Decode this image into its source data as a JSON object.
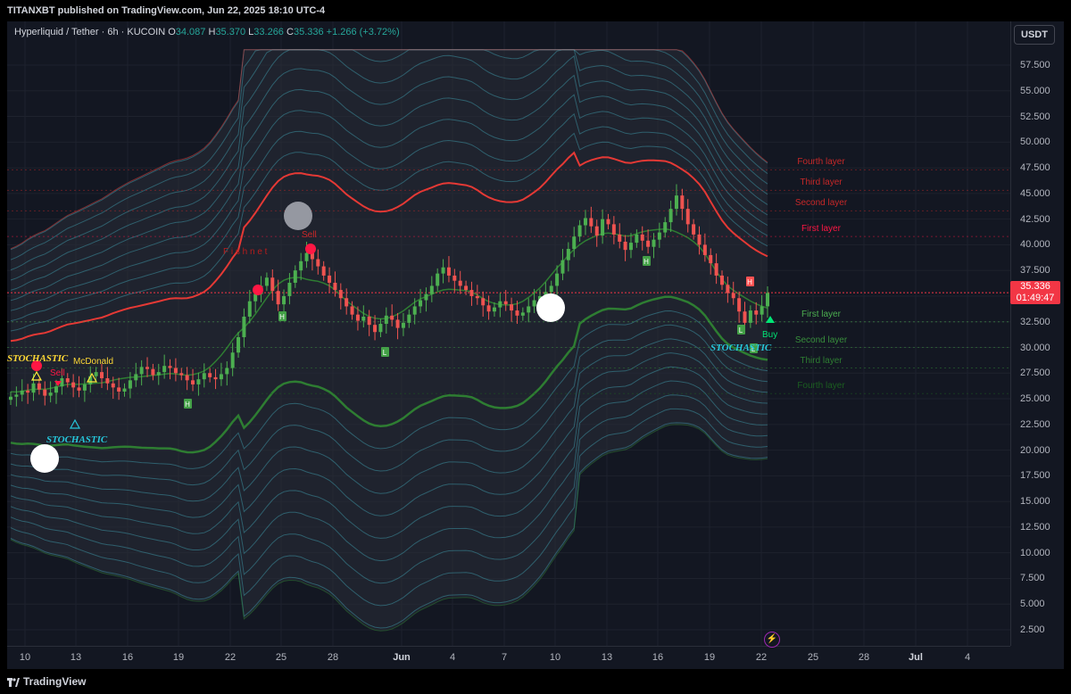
{
  "header": {
    "published": "TITANXBT published on TradingView.com, Jun 22, 2025 18:10 UTC-4"
  },
  "legend": {
    "symbol": "Hyperliquid / Tether · 6h · KUCOIN",
    "o_label": "O",
    "o_value": "34.087",
    "h_label": "H",
    "h_value": "35.370",
    "l_label": "L",
    "l_value": "33.266",
    "c_label": "C",
    "c_value": "35.336",
    "change": "+1.266 (+3.72%)"
  },
  "currency": "USDT",
  "price_axis": {
    "ticks": [
      "57.500",
      "55.000",
      "52.500",
      "50.000",
      "47.500",
      "45.000",
      "42.500",
      "40.000",
      "37.500",
      "35.000",
      "32.500",
      "30.000",
      "27.500",
      "25.000",
      "22.500",
      "20.000",
      "17.500",
      "15.000",
      "12.500",
      "10.000",
      "7.500",
      "5.000",
      "2.500"
    ]
  },
  "price_tag": {
    "price": "35.336",
    "countdown": "01:49:47"
  },
  "time_axis": {
    "ticks": [
      "10",
      "13",
      "16",
      "19",
      "22",
      "25",
      "28",
      "Jun",
      "4",
      "7",
      "10",
      "13",
      "16",
      "19",
      "22",
      "25",
      "28",
      "Jul",
      "4"
    ]
  },
  "layers": {
    "upper": [
      "Fourth layer",
      "Third layer",
      "Second layer",
      "First layer"
    ],
    "lower": [
      "First layer",
      "Second layer",
      "Third layer",
      "Fourth layer"
    ]
  },
  "signals": {
    "sell": "Sell",
    "buy": "Buy",
    "mcdonald": "McDonald",
    "stochastic": "STOCHASTIC",
    "fishnet": "F i s h n e t",
    "sell_small": "Sell",
    "h_marker": "H",
    "l_marker": "L"
  },
  "footer": {
    "brand": "TradingView"
  },
  "colors": {
    "bg": "#131722",
    "up": "#26a69a",
    "candle_up": "#4caf50",
    "candle_down": "#ef5350",
    "band_red": "#e53935",
    "band_green": "#2e7d32",
    "band_cyan": "#4dd0e1"
  },
  "chart_data": {
    "type": "candlestick",
    "title": "Hyperliquid / Tether · 6h · KUCOIN",
    "ylim": [
      2.5,
      57.5
    ],
    "x_start": "May 10",
    "x_end": "Jun 22",
    "closes": [
      25.2,
      25.4,
      25.8,
      25.6,
      26.5,
      25.9,
      25.3,
      25.6,
      26.2,
      27.0,
      26.6,
      26.1,
      25.8,
      26.4,
      27.2,
      27.6,
      27.0,
      26.5,
      26.1,
      25.7,
      26.0,
      26.8,
      27.4,
      28.1,
      27.9,
      27.3,
      27.6,
      28.2,
      28.0,
      27.5,
      27.3,
      26.8,
      26.4,
      26.9,
      27.5,
      27.1,
      26.9,
      27.4,
      28.0,
      29.5,
      31.0,
      33.0,
      34.5,
      35.2,
      36.0,
      36.8,
      35.5,
      34.2,
      35.0,
      36.3,
      37.5,
      38.4,
      39.2,
      38.6,
      37.9,
      37.0,
      36.3,
      35.6,
      34.8,
      34.0,
      33.2,
      32.6,
      33.0,
      32.2,
      31.5,
      32.3,
      33.1,
      32.7,
      31.9,
      32.4,
      33.2,
      34.0,
      34.6,
      35.2,
      36.0,
      37.2,
      37.8,
      37.0,
      36.5,
      36.0,
      35.6,
      35.0,
      34.8,
      34.1,
      33.5,
      33.9,
      34.5,
      34.2,
      33.6,
      33.1,
      33.4,
      34.0,
      34.6,
      35.0,
      35.4,
      36.0,
      37.2,
      38.5,
      39.6,
      40.8,
      41.9,
      42.6,
      41.8,
      40.9,
      42.5,
      42.0,
      41.0,
      40.3,
      39.5,
      40.2,
      41.0,
      40.4,
      39.8,
      40.5,
      41.2,
      42.2,
      43.5,
      44.8,
      43.5,
      42.0,
      41.0,
      40.0,
      39.0,
      38.2,
      37.0,
      36.1,
      35.3,
      34.8,
      33.5,
      32.4,
      33.6,
      33.2,
      34.0,
      35.3
    ],
    "bands": {
      "upper_layers": [
        41.5,
        44.0,
        46.0,
        48.0
      ],
      "lower_layers": [
        32.5,
        30.0,
        28.0,
        25.5
      ]
    }
  }
}
